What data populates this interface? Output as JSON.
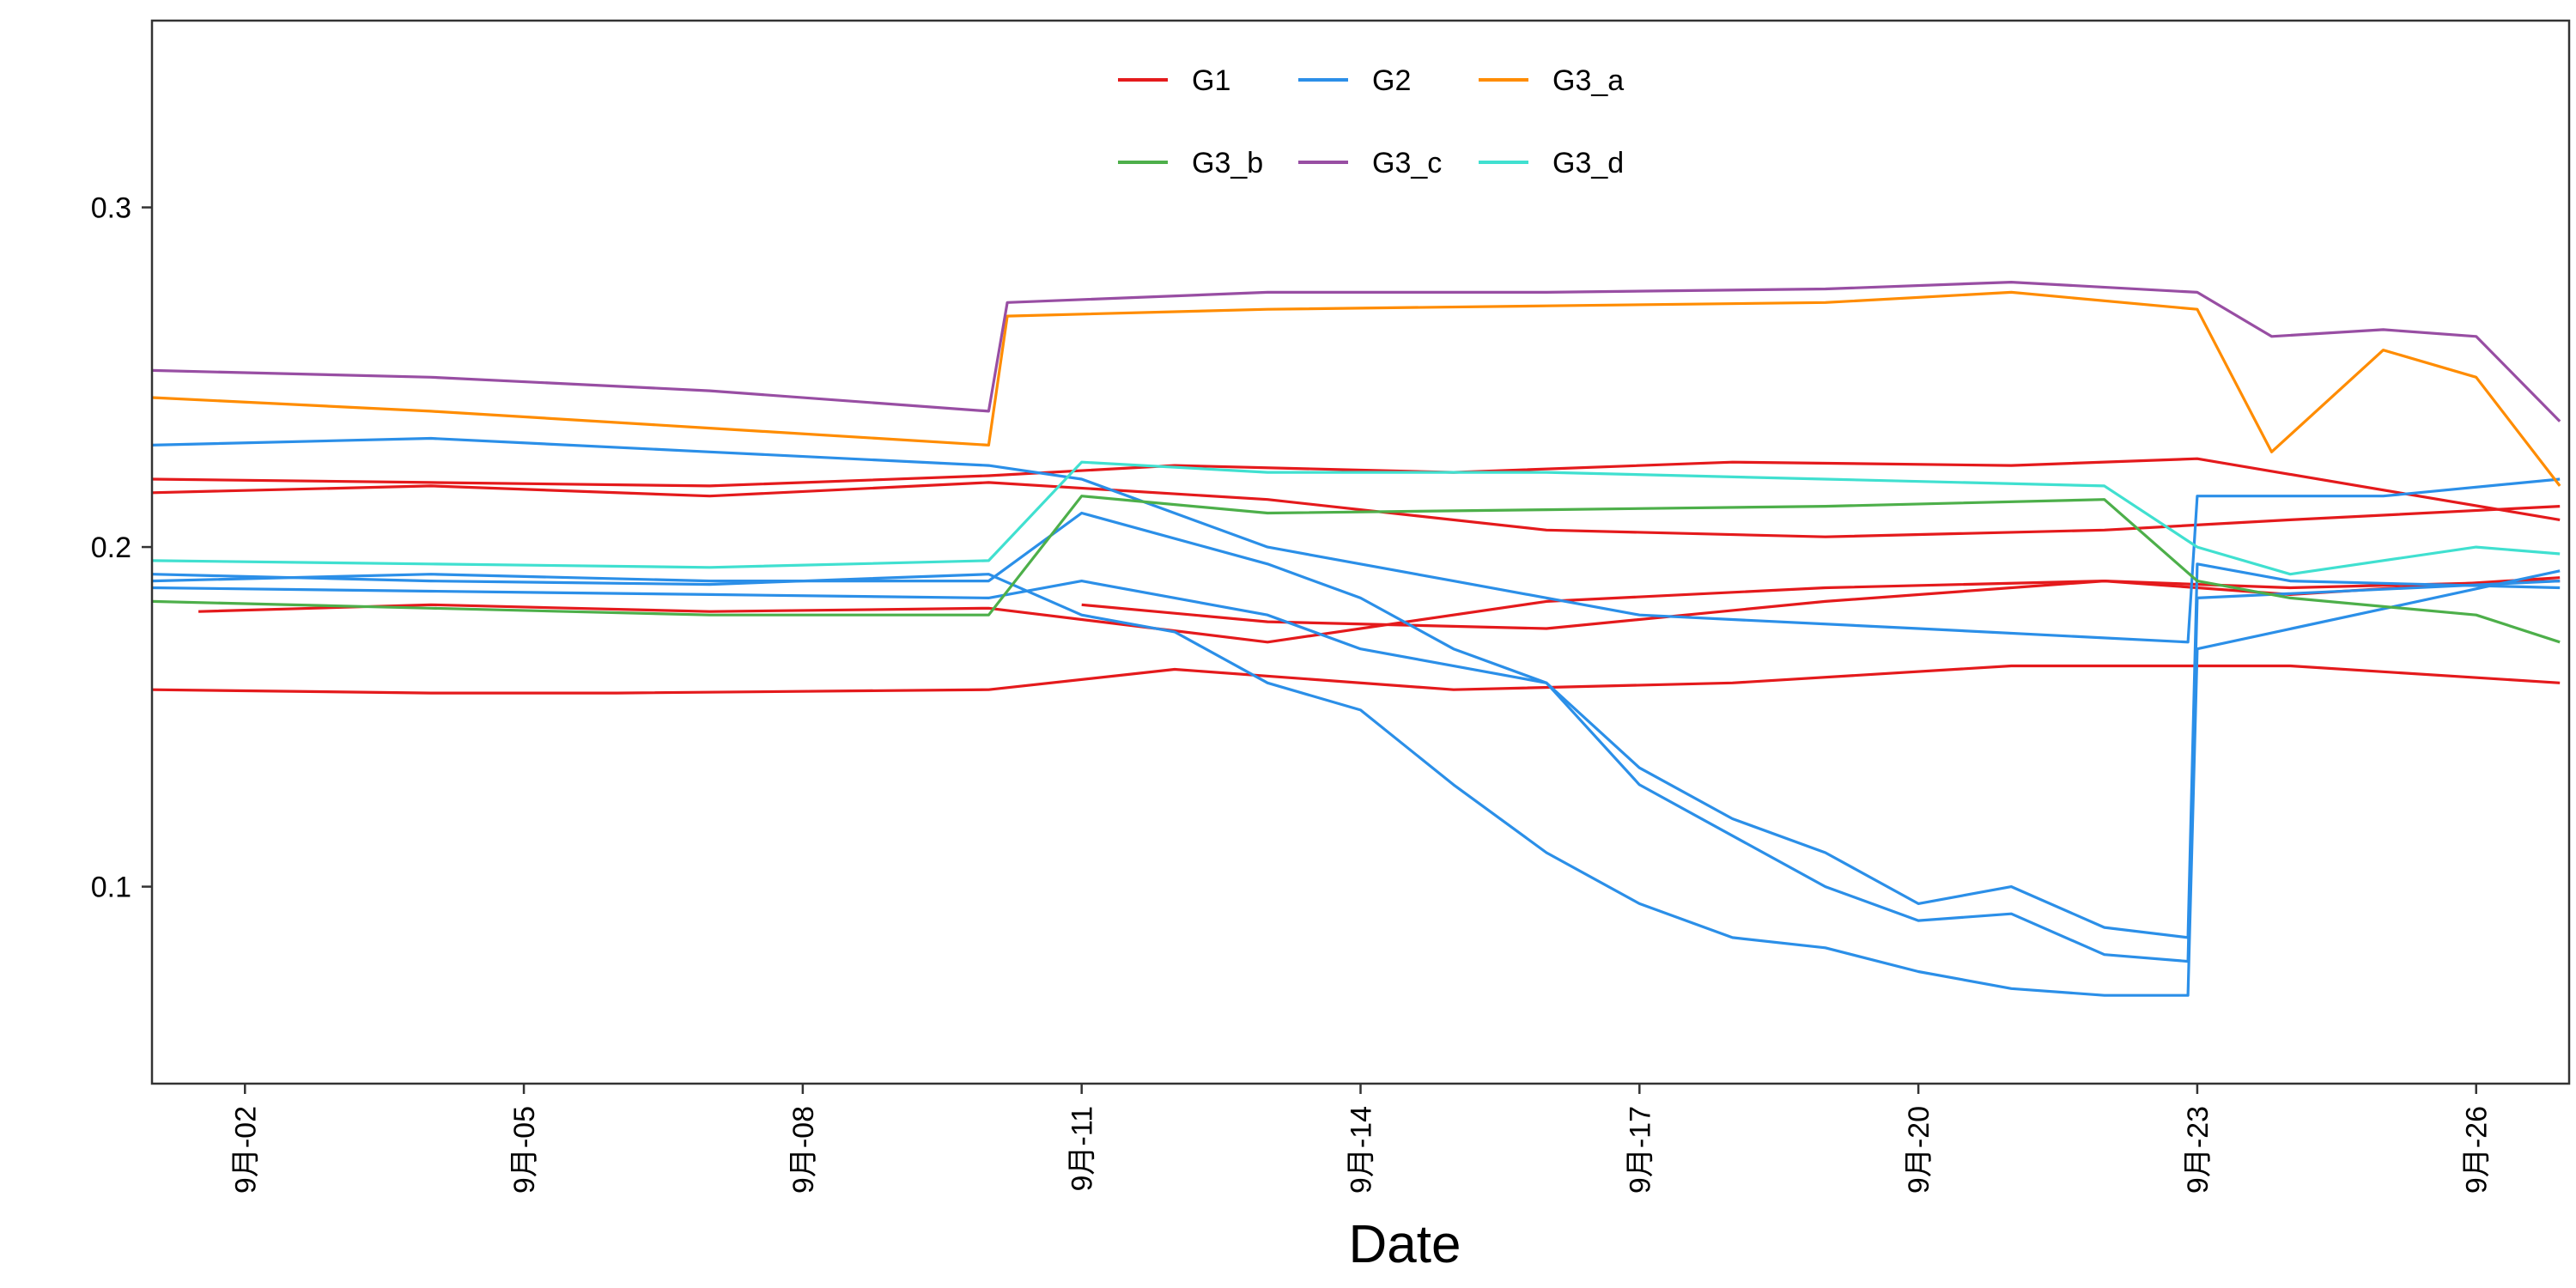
{
  "chart_data": {
    "type": "line",
    "title": "",
    "xlabel": "Date",
    "ylabel": "",
    "x_range": [
      "2023-09-01",
      "2023-09-27"
    ],
    "ylim": [
      0.042,
      0.355
    ],
    "x_ticks": [
      {
        "date": "2023-09-02",
        "label": "9月-02"
      },
      {
        "date": "2023-09-05",
        "label": "9月-05"
      },
      {
        "date": "2023-09-08",
        "label": "9月-08"
      },
      {
        "date": "2023-09-11",
        "label": "9月-11"
      },
      {
        "date": "2023-09-14",
        "label": "9月-14"
      },
      {
        "date": "2023-09-17",
        "label": "9月-17"
      },
      {
        "date": "2023-09-20",
        "label": "9月-20"
      },
      {
        "date": "2023-09-23",
        "label": "9月-23"
      },
      {
        "date": "2023-09-26",
        "label": "9月-26"
      }
    ],
    "y_ticks": [
      {
        "value": 0.1,
        "label": "0.1"
      },
      {
        "value": 0.2,
        "label": "0.2"
      },
      {
        "value": 0.3,
        "label": "0.3"
      }
    ],
    "grid": false,
    "legend_position": "top-center",
    "series": [
      {
        "name": "G1",
        "color": "#e41a1c",
        "lines": [
          [
            [
              "2023-09-01",
              0.158
            ],
            [
              "2023-09-04",
              0.157
            ],
            [
              "2023-09-06",
              0.157
            ],
            [
              "2023-09-10",
              0.158
            ],
            [
              "2023-09-12",
              0.164
            ],
            [
              "2023-09-15",
              0.158
            ],
            [
              "2023-09-18",
              0.16
            ],
            [
              "2023-09-21",
              0.165
            ],
            [
              "2023-09-24",
              0.165
            ],
            [
              "2023-09-26.9",
              0.16
            ]
          ],
          [
            [
              "2023-09-01.5",
              0.181
            ],
            [
              "2023-09-04",
              0.183
            ],
            [
              "2023-09-07",
              0.181
            ],
            [
              "2023-09-10",
              0.182
            ],
            [
              "2023-09-13",
              0.172
            ],
            [
              "2023-09-16",
              0.184
            ],
            [
              "2023-09-19",
              0.188
            ],
            [
              "2023-09-22",
              0.19
            ],
            [
              "2023-09-24",
              0.188
            ],
            [
              "2023-09-26.9",
              0.19
            ]
          ],
          [
            [
              "2023-09-01",
              0.216
            ],
            [
              "2023-09-04",
              0.218
            ],
            [
              "2023-09-07",
              0.215
            ],
            [
              "2023-09-10",
              0.219
            ],
            [
              "2023-09-13",
              0.214
            ],
            [
              "2023-09-16",
              0.205
            ],
            [
              "2023-09-19",
              0.203
            ],
            [
              "2023-09-22",
              0.205
            ],
            [
              "2023-09-24",
              0.208
            ],
            [
              "2023-09-26.9",
              0.212
            ]
          ],
          [
            [
              "2023-09-01",
              0.22
            ],
            [
              "2023-09-04",
              0.219
            ],
            [
              "2023-09-07",
              0.218
            ],
            [
              "2023-09-10",
              0.221
            ],
            [
              "2023-09-12",
              0.224
            ],
            [
              "2023-09-15",
              0.222
            ],
            [
              "2023-09-18",
              0.225
            ],
            [
              "2023-09-21",
              0.224
            ],
            [
              "2023-09-23",
              0.226
            ],
            [
              "2023-09-26.9",
              0.208
            ]
          ],
          [
            [
              "2023-09-11",
              0.183
            ],
            [
              "2023-09-13",
              0.178
            ],
            [
              "2023-09-16",
              0.176
            ],
            [
              "2023-09-19",
              0.184
            ],
            [
              "2023-09-22",
              0.19
            ],
            [
              "2023-09-24",
              0.186
            ],
            [
              "2023-09-26.9",
              0.191
            ]
          ]
        ]
      },
      {
        "name": "G2",
        "color": "#2b8fe8",
        "lines": [
          [
            [
              "2023-09-01",
              0.23
            ],
            [
              "2023-09-04",
              0.232
            ],
            [
              "2023-09-07",
              0.228
            ],
            [
              "2023-09-10",
              0.224
            ],
            [
              "2023-09-11",
              0.22
            ],
            [
              "2023-09-13",
              0.2
            ],
            [
              "2023-09-15",
              0.19
            ],
            [
              "2023-09-17",
              0.18
            ],
            [
              "2023-09-20",
              0.176
            ],
            [
              "2023-09-22.9",
              0.172
            ],
            [
              "2023-09-23",
              0.215
            ],
            [
              "2023-09-25",
              0.215
            ],
            [
              "2023-09-26.9",
              0.22
            ]
          ],
          [
            [
              "2023-09-01",
              0.19
            ],
            [
              "2023-09-04",
              0.192
            ],
            [
              "2023-09-07",
              0.19
            ],
            [
              "2023-09-10",
              0.19
            ],
            [
              "2023-09-11",
              0.21
            ],
            [
              "2023-09-13",
              0.195
            ],
            [
              "2023-09-14",
              0.185
            ],
            [
              "2023-09-15",
              0.17
            ],
            [
              "2023-09-16",
              0.16
            ],
            [
              "2023-09-17",
              0.135
            ],
            [
              "2023-09-18",
              0.12
            ],
            [
              "2023-09-19",
              0.11
            ],
            [
              "2023-09-20",
              0.095
            ],
            [
              "2023-09-21",
              0.1
            ],
            [
              "2023-09-22",
              0.088
            ],
            [
              "2023-09-22.9",
              0.085
            ],
            [
              "2023-09-23",
              0.195
            ],
            [
              "2023-09-24",
              0.19
            ],
            [
              "2023-09-26.9",
              0.188
            ]
          ],
          [
            [
              "2023-09-01",
              0.188
            ],
            [
              "2023-09-04",
              0.187
            ],
            [
              "2023-09-07",
              0.186
            ],
            [
              "2023-09-10",
              0.185
            ],
            [
              "2023-09-11",
              0.19
            ],
            [
              "2023-09-13",
              0.18
            ],
            [
              "2023-09-14",
              0.17
            ],
            [
              "2023-09-16",
              0.16
            ],
            [
              "2023-09-17",
              0.13
            ],
            [
              "2023-09-18",
              0.115
            ],
            [
              "2023-09-19",
              0.1
            ],
            [
              "2023-09-20",
              0.09
            ],
            [
              "2023-09-21",
              0.092
            ],
            [
              "2023-09-22",
              0.08
            ],
            [
              "2023-09-22.9",
              0.078
            ],
            [
              "2023-09-23",
              0.185
            ],
            [
              "2023-09-26.9",
              0.19
            ]
          ],
          [
            [
              "2023-09-01",
              0.192
            ],
            [
              "2023-09-04",
              0.19
            ],
            [
              "2023-09-07",
              0.189
            ],
            [
              "2023-09-10",
              0.192
            ],
            [
              "2023-09-11",
              0.18
            ],
            [
              "2023-09-12",
              0.175
            ],
            [
              "2023-09-13",
              0.16
            ],
            [
              "2023-09-14",
              0.152
            ],
            [
              "2023-09-15",
              0.13
            ],
            [
              "2023-09-16",
              0.11
            ],
            [
              "2023-09-17",
              0.095
            ],
            [
              "2023-09-18",
              0.085
            ],
            [
              "2023-09-19",
              0.082
            ],
            [
              "2023-09-20",
              0.075
            ],
            [
              "2023-09-21",
              0.07
            ],
            [
              "2023-09-22",
              0.068
            ],
            [
              "2023-09-22.9",
              0.068
            ],
            [
              "2023-09-23",
              0.17
            ],
            [
              "2023-09-26.9",
              0.193
            ]
          ]
        ]
      },
      {
        "name": "G3_a",
        "color": "#ff8c00",
        "lines": [
          [
            [
              "2023-09-01",
              0.244
            ],
            [
              "2023-09-04",
              0.24
            ],
            [
              "2023-09-07",
              0.235
            ],
            [
              "2023-09-10",
              0.23
            ],
            [
              "2023-09-10.2",
              0.268
            ],
            [
              "2023-09-13",
              0.27
            ],
            [
              "2023-09-16",
              0.271
            ],
            [
              "2023-09-19",
              0.272
            ],
            [
              "2023-09-21",
              0.275
            ],
            [
              "2023-09-23",
              0.27
            ],
            [
              "2023-09-23.8",
              0.228
            ],
            [
              "2023-09-25",
              0.258
            ],
            [
              "2023-09-26",
              0.25
            ],
            [
              "2023-09-26.9",
              0.218
            ]
          ]
        ]
      },
      {
        "name": "G3_b",
        "color": "#4daf4a",
        "lines": [
          [
            [
              "2023-09-01",
              0.184
            ],
            [
              "2023-09-04",
              0.182
            ],
            [
              "2023-09-07",
              0.18
            ],
            [
              "2023-09-10",
              0.18
            ],
            [
              "2023-09-11",
              0.215
            ],
            [
              "2023-09-13",
              0.21
            ],
            [
              "2023-09-16",
              0.211
            ],
            [
              "2023-09-19",
              0.212
            ],
            [
              "2023-09-22",
              0.214
            ],
            [
              "2023-09-23",
              0.19
            ],
            [
              "2023-09-24",
              0.185
            ],
            [
              "2023-09-26",
              0.18
            ],
            [
              "2023-09-26.9",
              0.172
            ]
          ]
        ]
      },
      {
        "name": "G3_c",
        "color": "#984ea3",
        "lines": [
          [
            [
              "2023-09-01",
              0.252
            ],
            [
              "2023-09-04",
              0.25
            ],
            [
              "2023-09-07",
              0.246
            ],
            [
              "2023-09-10",
              0.24
            ],
            [
              "2023-09-10.2",
              0.272
            ],
            [
              "2023-09-13",
              0.275
            ],
            [
              "2023-09-16",
              0.275
            ],
            [
              "2023-09-19",
              0.276
            ],
            [
              "2023-09-21",
              0.278
            ],
            [
              "2023-09-23",
              0.275
            ],
            [
              "2023-09-23.8",
              0.262
            ],
            [
              "2023-09-25",
              0.264
            ],
            [
              "2023-09-26",
              0.262
            ],
            [
              "2023-09-26.9",
              0.237
            ]
          ]
        ]
      },
      {
        "name": "G3_d",
        "color": "#40e0d0",
        "lines": [
          [
            [
              "2023-09-01",
              0.196
            ],
            [
              "2023-09-04",
              0.195
            ],
            [
              "2023-09-07",
              0.194
            ],
            [
              "2023-09-10",
              0.196
            ],
            [
              "2023-09-11",
              0.225
            ],
            [
              "2023-09-13",
              0.222
            ],
            [
              "2023-09-16",
              0.222
            ],
            [
              "2023-09-19",
              0.22
            ],
            [
              "2023-09-22",
              0.218
            ],
            [
              "2023-09-23",
              0.2
            ],
            [
              "2023-09-24",
              0.192
            ],
            [
              "2023-09-26",
              0.2
            ],
            [
              "2023-09-26.9",
              0.198
            ]
          ]
        ]
      }
    ]
  }
}
